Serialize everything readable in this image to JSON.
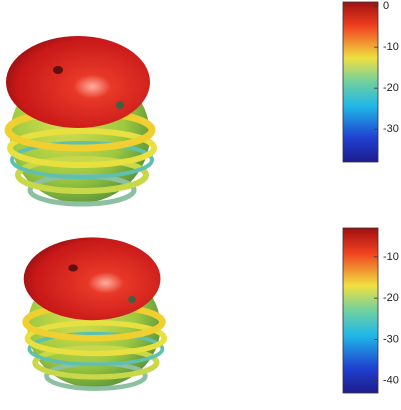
{
  "chart_data": [
    {
      "type": "surface",
      "colormap": "jet",
      "clim": [
        -38,
        1
      ],
      "cticks": [
        0,
        -10,
        -20,
        -30
      ]
    },
    {
      "type": "surface",
      "colormap": "jet",
      "clim": [
        -43,
        -3
      ],
      "cticks": [
        -10,
        -20,
        -30,
        -40
      ]
    }
  ]
}
